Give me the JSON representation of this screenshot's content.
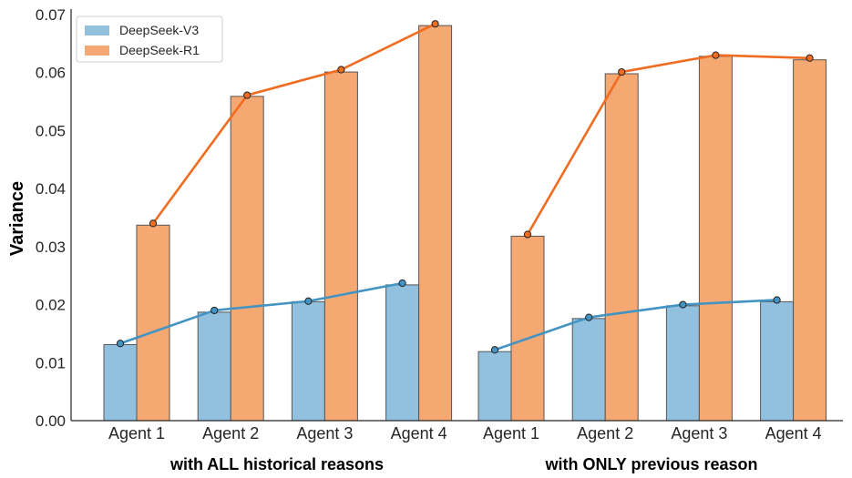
{
  "chart_data": {
    "type": "bar",
    "ylabel": "Variance",
    "ylim": [
      0,
      0.07
    ],
    "yticks": [
      0.0,
      0.01,
      0.02,
      0.03,
      0.04,
      0.05,
      0.06,
      0.07
    ],
    "ytick_labels": [
      "0.00",
      "0.01",
      "0.02",
      "0.03",
      "0.04",
      "0.05",
      "0.06",
      "0.07"
    ],
    "grid": false,
    "legend_position": "top-left",
    "groups": [
      {
        "title": "with ALL historical reasons",
        "categories": [
          "Agent 1",
          "Agent 2",
          "Agent 3",
          "Agent 4"
        ],
        "bar_values": {
          "DeepSeek-V3": [
            0.0131,
            0.0187,
            0.0205,
            0.0234
          ],
          "DeepSeek-R1": [
            0.0337,
            0.0559,
            0.0601,
            0.0681
          ]
        },
        "line_values": {
          "DeepSeek-V3": [
            0.0133,
            0.019,
            0.0206,
            0.0237
          ],
          "DeepSeek-R1": [
            0.034,
            0.0561,
            0.0605,
            0.0684
          ]
        }
      },
      {
        "title": "with ONLY previous reason",
        "categories": [
          "Agent 1",
          "Agent 2",
          "Agent 3",
          "Agent 4"
        ],
        "bar_values": {
          "DeepSeek-V3": [
            0.0119,
            0.0176,
            0.0198,
            0.0205
          ],
          "DeepSeek-R1": [
            0.0318,
            0.0598,
            0.0628,
            0.0622
          ]
        },
        "line_values": {
          "DeepSeek-V3": [
            0.0122,
            0.0178,
            0.02,
            0.0208
          ],
          "DeepSeek-R1": [
            0.0321,
            0.0601,
            0.063,
            0.0625
          ]
        }
      }
    ],
    "series": [
      {
        "name": "DeepSeek-V3",
        "bar_color": "#92c1e0",
        "line_color": "#4393c3"
      },
      {
        "name": "DeepSeek-R1",
        "bar_color": "#f5a872",
        "line_color": "#ef6c21"
      }
    ]
  }
}
